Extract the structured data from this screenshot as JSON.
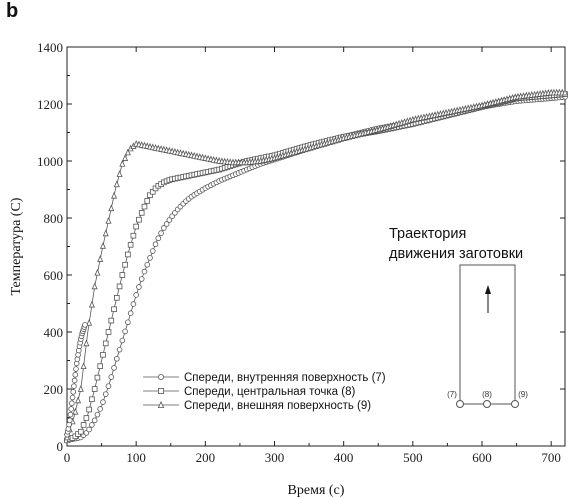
{
  "panel_label": "b",
  "chart_data": {
    "type": "line",
    "xlabel": "Время (с)",
    "ylabel": "Температура (C)",
    "xlim": [
      0,
      720
    ],
    "ylim": [
      0,
      1400
    ],
    "xticks": [
      0,
      100,
      200,
      300,
      400,
      500,
      600,
      700
    ],
    "yticks": [
      0,
      200,
      400,
      600,
      800,
      1000,
      1200,
      1400
    ],
    "grid": false,
    "legend_position": "bottom-center",
    "series": [
      {
        "name": "Спереди, внутренняя поверхность (7)",
        "marker": "circle",
        "x": [
          0,
          10,
          20,
          30,
          40,
          50,
          60,
          70,
          80,
          90,
          100,
          110,
          120,
          130,
          140,
          150,
          160,
          170,
          180,
          190,
          200,
          220,
          240,
          260,
          280,
          300,
          350,
          400,
          450,
          500,
          550,
          600,
          650,
          700,
          720
        ],
        "y": [
          20,
          25,
          30,
          50,
          90,
          140,
          210,
          290,
          370,
          450,
          530,
          600,
          660,
          720,
          765,
          800,
          830,
          855,
          875,
          890,
          905,
          930,
          950,
          970,
          990,
          1005,
          1045,
          1085,
          1115,
          1135,
          1160,
          1190,
          1210,
          1220,
          1225
        ]
      },
      {
        "name": "Спереди, центральная точка (8)",
        "marker": "square",
        "x": [
          0,
          10,
          20,
          30,
          40,
          50,
          60,
          70,
          80,
          90,
          100,
          110,
          120,
          130,
          140,
          150,
          160,
          170,
          180,
          190,
          200,
          220,
          240,
          260,
          280,
          300,
          350,
          400,
          450,
          500,
          550,
          600,
          650,
          700,
          720
        ],
        "y": [
          20,
          30,
          50,
          110,
          200,
          300,
          400,
          500,
          600,
          690,
          770,
          830,
          880,
          910,
          925,
          935,
          940,
          945,
          950,
          955,
          960,
          970,
          985,
          1000,
          1010,
          1020,
          1055,
          1085,
          1105,
          1130,
          1160,
          1190,
          1220,
          1230,
          1235
        ]
      },
      {
        "name": "Спереди, внешняя поверхность (9)",
        "marker": "triangle",
        "x": [
          0,
          10,
          20,
          30,
          40,
          50,
          60,
          70,
          80,
          90,
          100,
          110,
          120,
          130,
          140,
          150,
          160,
          170,
          180,
          190,
          200,
          220,
          240,
          260,
          280,
          300,
          350,
          400,
          450,
          500,
          550,
          600,
          650,
          700,
          720
        ],
        "y": [
          30,
          100,
          200,
          400,
          560,
          680,
          790,
          900,
          990,
          1040,
          1060,
          1055,
          1050,
          1045,
          1040,
          1035,
          1030,
          1025,
          1020,
          1015,
          1010,
          1000,
          995,
          995,
          1000,
          1010,
          1045,
          1080,
          1110,
          1145,
          1170,
          1195,
          1225,
          1240,
          1240
        ]
      },
      {
        "marker": "circle",
        "x": [
          0,
          2,
          4,
          6,
          8,
          10,
          12,
          14,
          16,
          18,
          20,
          22,
          24,
          26
        ],
        "y": [
          40,
          60,
          90,
          130,
          170,
          210,
          250,
          290,
          320,
          350,
          375,
          395,
          410,
          425
        ]
      }
    ],
    "inset": {
      "title_line1": "Траектория",
      "title_line2": "движения заготовки",
      "points": [
        "(7)",
        "(8)",
        "(9)"
      ]
    }
  }
}
